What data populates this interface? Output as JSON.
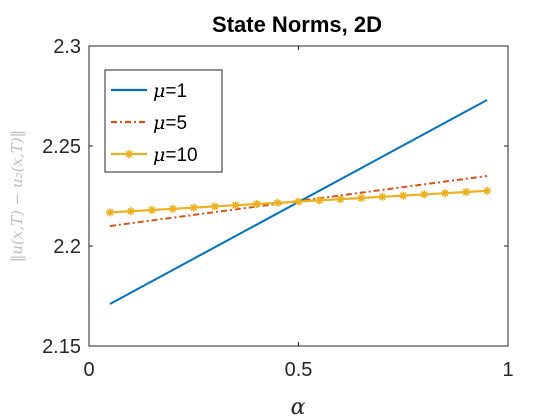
{
  "chart_data": {
    "type": "line",
    "title": "State Norms, 2D",
    "xlabel": "α",
    "ylabel": "‖u(x,T) − u₂(x,T)‖",
    "xlim": [
      0,
      1
    ],
    "ylim": [
      2.15,
      2.3
    ],
    "xticks": [
      0,
      0.5,
      1
    ],
    "xtick_labels": [
      "0",
      "0.5",
      "1"
    ],
    "yticks": [
      2.15,
      2.2,
      2.25,
      2.3
    ],
    "ytick_labels": [
      "2.15",
      "2.2",
      "2.25",
      "2.3"
    ],
    "grid": false,
    "legend_position": "top-left",
    "series": [
      {
        "name": "μ=1",
        "legend_symbol": "μ",
        "legend_value": "=1",
        "color": "#0072BD",
        "style": "solid",
        "marker": "none",
        "x": [
          0.05,
          0.95
        ],
        "y": [
          2.171,
          2.273
        ]
      },
      {
        "name": "μ=5",
        "legend_symbol": "μ",
        "legend_value": "=5",
        "color": "#D95319",
        "style": "dashdot",
        "marker": "none",
        "x": [
          0.05,
          0.95
        ],
        "y": [
          2.21,
          2.235
        ]
      },
      {
        "name": "μ=10",
        "legend_symbol": "μ",
        "legend_value": "=10",
        "color": "#EDB120",
        "style": "solid",
        "marker": "asterisk",
        "x": [
          0.05,
          0.1,
          0.15,
          0.2,
          0.25,
          0.3,
          0.35,
          0.4,
          0.45,
          0.5,
          0.55,
          0.6,
          0.65,
          0.7,
          0.75,
          0.8,
          0.85,
          0.9,
          0.95
        ],
        "y": [
          2.2168,
          2.2174,
          2.218,
          2.2186,
          2.2192,
          2.2198,
          2.2204,
          2.221,
          2.2216,
          2.2222,
          2.2228,
          2.2234,
          2.224,
          2.2246,
          2.2252,
          2.2258,
          2.2264,
          2.227,
          2.2276
        ]
      }
    ]
  }
}
